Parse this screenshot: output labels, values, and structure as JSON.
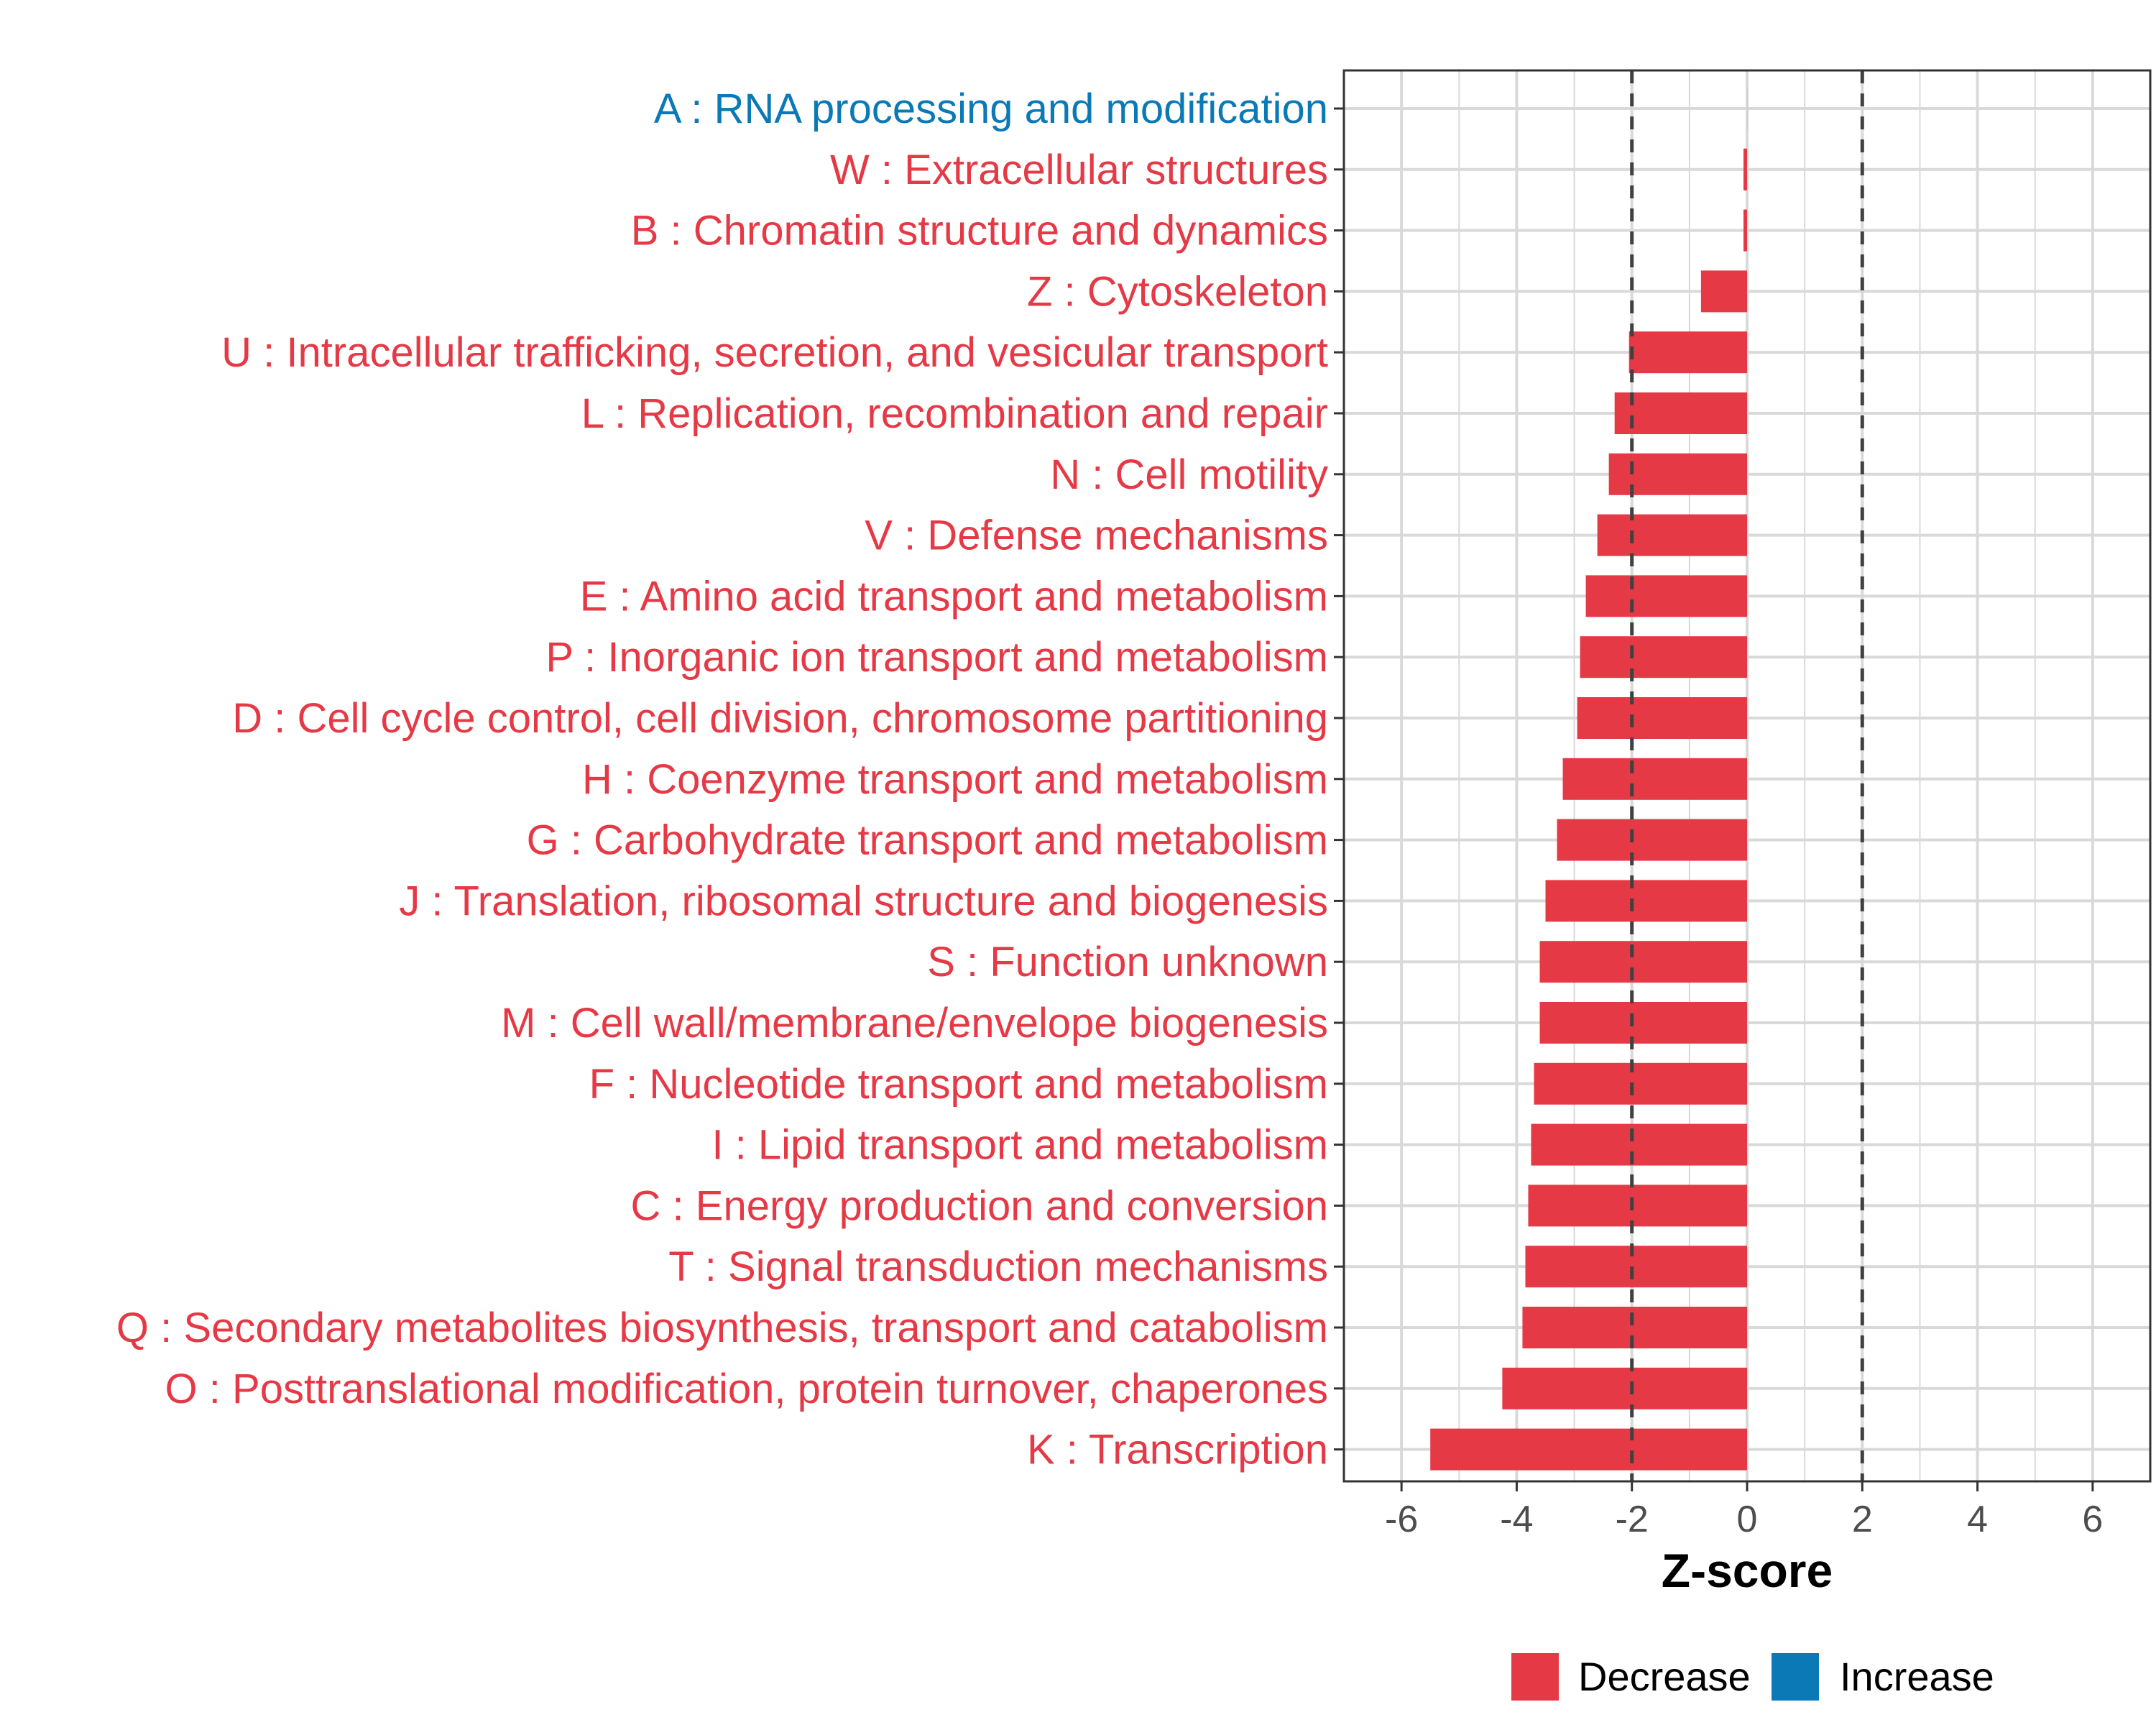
{
  "chart_data": {
    "type": "bar",
    "orientation": "horizontal",
    "title": "",
    "xlabel": "Z-score",
    "ylabel": "",
    "xlim": [
      -7.0,
      7.0
    ],
    "x_ticks": [
      -6,
      -4,
      -2,
      0,
      2,
      4,
      6
    ],
    "x_tick_labels": [
      "-6",
      "-4",
      "-2",
      "0",
      "2",
      "4",
      "6"
    ],
    "reference_lines": [
      -2,
      2
    ],
    "grid": true,
    "categories": [
      "A : RNA processing and modification",
      "W : Extracellular structures",
      "B : Chromatin structure and dynamics",
      "Z : Cytoskeleton",
      "U : Intracellular trafficking, secretion, and vesicular transport",
      "L : Replication, recombination and repair",
      "N : Cell motility",
      "V : Defense mechanisms",
      "E : Amino acid transport and metabolism",
      "P : Inorganic ion transport and metabolism",
      "D : Cell cycle control, cell division, chromosome partitioning",
      "H : Coenzyme transport and metabolism",
      "G : Carbohydrate transport and metabolism",
      "J : Translation, ribosomal structure and biogenesis",
      "S : Function unknown",
      "M : Cell wall/membrane/envelope biogenesis",
      "F : Nucleotide transport and metabolism",
      "I : Lipid transport and metabolism",
      "C : Energy production and conversion",
      "T : Signal transduction mechanisms",
      "Q : Secondary metabolites biosynthesis, transport and catabolism",
      "O : Posttranslational modification, protein turnover, chaperones",
      "K : Transcription"
    ],
    "values": [
      0,
      -0.05,
      -0.05,
      -0.8,
      -2.05,
      -2.3,
      -2.4,
      -2.6,
      -2.8,
      -2.9,
      -2.95,
      -3.2,
      -3.3,
      -3.5,
      -3.6,
      -3.6,
      -3.7,
      -3.75,
      -3.8,
      -3.85,
      -3.9,
      -4.25,
      -5.5
    ],
    "groups": [
      "Increase",
      "Decrease",
      "Decrease",
      "Decrease",
      "Decrease",
      "Decrease",
      "Decrease",
      "Decrease",
      "Decrease",
      "Decrease",
      "Decrease",
      "Decrease",
      "Decrease",
      "Decrease",
      "Decrease",
      "Decrease",
      "Decrease",
      "Decrease",
      "Decrease",
      "Decrease",
      "Decrease",
      "Decrease",
      "Decrease"
    ],
    "legend": {
      "placement": "bottom",
      "items": [
        {
          "label": "Decrease",
          "color": "#e63946"
        },
        {
          "label": "Increase",
          "color": "#0b79b5"
        }
      ]
    },
    "colors": {
      "Decrease": "#e63946",
      "Increase": "#0b79b5",
      "grid": "#d9d9d9",
      "reference_line": "#404040"
    }
  }
}
